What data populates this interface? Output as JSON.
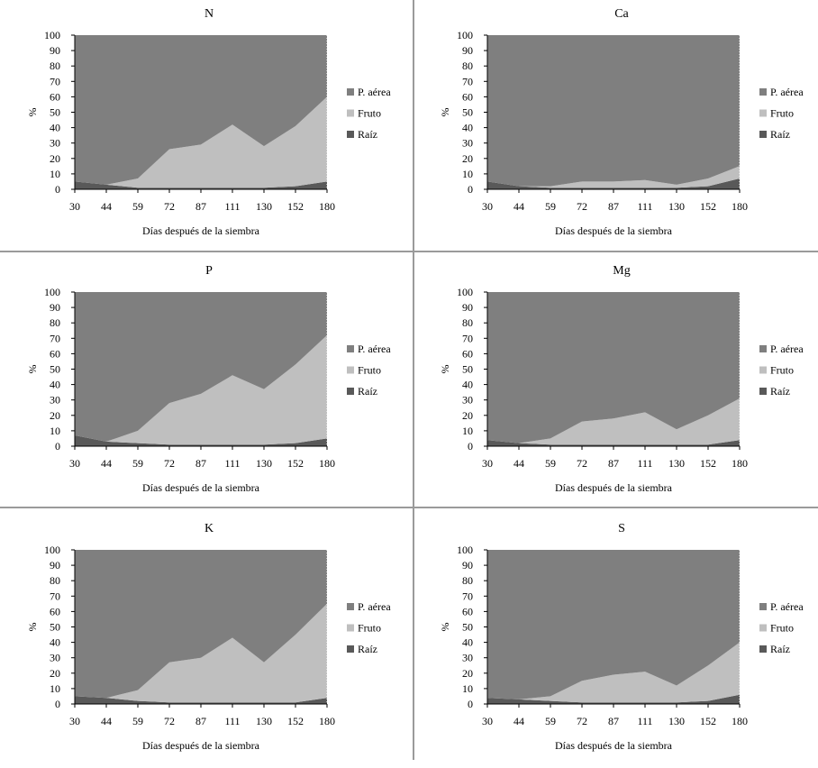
{
  "colors": {
    "aerial": "#7f7f7f",
    "fruit": "#bfbfbf",
    "root": "#595959"
  },
  "chart_data": [
    {
      "type": "area",
      "stacked": true,
      "title": "N",
      "xlabel": "Días después de la siembra",
      "ylabel": "%",
      "ylim": [
        0,
        100
      ],
      "yticks": [
        0,
        10,
        20,
        30,
        40,
        50,
        60,
        70,
        80,
        90,
        100
      ],
      "categories": [
        "30",
        "44",
        "59",
        "72",
        "87",
        "111",
        "130",
        "152",
        "180"
      ],
      "legend": "right",
      "series": [
        {
          "name": "Raíz",
          "values": [
            5,
            3,
            1,
            1,
            1,
            1,
            1,
            2,
            5
          ]
        },
        {
          "name": "Fruto",
          "values": [
            0,
            0,
            6,
            25,
            28,
            41,
            27,
            39,
            55
          ]
        },
        {
          "name": "P. aérea",
          "values": [
            95,
            97,
            93,
            74,
            71,
            58,
            72,
            59,
            40
          ]
        }
      ]
    },
    {
      "type": "area",
      "stacked": true,
      "title": "Ca",
      "xlabel": "Días después de la siembra",
      "ylabel": "%",
      "ylim": [
        0,
        100
      ],
      "yticks": [
        0,
        10,
        20,
        30,
        40,
        50,
        60,
        70,
        80,
        90,
        100
      ],
      "categories": [
        "30",
        "44",
        "59",
        "72",
        "87",
        "111",
        "130",
        "152",
        "180"
      ],
      "legend": "right",
      "series": [
        {
          "name": "Raíz",
          "values": [
            5,
            2,
            1,
            1,
            1,
            1,
            1,
            2,
            7
          ]
        },
        {
          "name": "Fruto",
          "values": [
            0,
            0,
            1,
            4,
            4,
            5,
            2,
            5,
            8
          ]
        },
        {
          "name": "P. aérea",
          "values": [
            95,
            98,
            98,
            95,
            95,
            94,
            97,
            93,
            85
          ]
        }
      ]
    },
    {
      "type": "area",
      "stacked": true,
      "title": "P",
      "xlabel": "Días después de la siembra",
      "ylabel": "%",
      "ylim": [
        0,
        100
      ],
      "yticks": [
        0,
        10,
        20,
        30,
        40,
        50,
        60,
        70,
        80,
        90,
        100
      ],
      "categories": [
        "30",
        "44",
        "59",
        "72",
        "87",
        "111",
        "130",
        "152",
        "180"
      ],
      "legend": "right",
      "series": [
        {
          "name": "Raíz",
          "values": [
            7,
            3,
            2,
            1,
            1,
            1,
            1,
            2,
            5
          ]
        },
        {
          "name": "Fruto",
          "values": [
            0,
            0,
            8,
            27,
            33,
            45,
            36,
            51,
            67
          ]
        },
        {
          "name": "P. aérea",
          "values": [
            93,
            97,
            90,
            72,
            66,
            54,
            63,
            47,
            28
          ]
        }
      ]
    },
    {
      "type": "area",
      "stacked": true,
      "title": "Mg",
      "xlabel": "Días después de la siembra",
      "ylabel": "%",
      "ylim": [
        0,
        100
      ],
      "yticks": [
        0,
        10,
        20,
        30,
        40,
        50,
        60,
        70,
        80,
        90,
        100
      ],
      "categories": [
        "30",
        "44",
        "59",
        "72",
        "87",
        "111",
        "130",
        "152",
        "180"
      ],
      "legend": "right",
      "series": [
        {
          "name": "Raíz",
          "values": [
            4,
            2,
            1,
            1,
            1,
            1,
            1,
            1,
            4
          ]
        },
        {
          "name": "Fruto",
          "values": [
            0,
            0,
            4,
            15,
            17,
            21,
            10,
            19,
            27
          ]
        },
        {
          "name": "P. aérea",
          "values": [
            96,
            98,
            95,
            84,
            82,
            78,
            89,
            80,
            69
          ]
        }
      ]
    },
    {
      "type": "area",
      "stacked": true,
      "title": "K",
      "xlabel": "Días después de la siembra",
      "ylabel": "%",
      "ylim": [
        0,
        100
      ],
      "yticks": [
        0,
        10,
        20,
        30,
        40,
        50,
        60,
        70,
        80,
        90,
        100
      ],
      "categories": [
        "30",
        "44",
        "59",
        "72",
        "87",
        "111",
        "130",
        "152",
        "180"
      ],
      "legend": "right",
      "series": [
        {
          "name": "Raíz",
          "values": [
            5,
            4,
            2,
            1,
            1,
            1,
            1,
            1,
            4
          ]
        },
        {
          "name": "Fruto",
          "values": [
            0,
            0,
            7,
            26,
            29,
            42,
            26,
            44,
            61
          ]
        },
        {
          "name": "P. aérea",
          "values": [
            95,
            96,
            91,
            73,
            70,
            57,
            73,
            55,
            35
          ]
        }
      ]
    },
    {
      "type": "area",
      "stacked": true,
      "title": "S",
      "xlabel": "Días después de la siembra",
      "ylabel": "%",
      "ylim": [
        0,
        100
      ],
      "yticks": [
        0,
        10,
        20,
        30,
        40,
        50,
        60,
        70,
        80,
        90,
        100
      ],
      "categories": [
        "30",
        "44",
        "59",
        "72",
        "87",
        "111",
        "130",
        "152",
        "180"
      ],
      "legend": "right",
      "series": [
        {
          "name": "Raíz",
          "values": [
            4,
            3,
            2,
            1,
            1,
            1,
            1,
            2,
            6
          ]
        },
        {
          "name": "Fruto",
          "values": [
            0,
            0,
            3,
            14,
            18,
            20,
            11,
            23,
            34
          ]
        },
        {
          "name": "P. aérea",
          "values": [
            96,
            97,
            95,
            85,
            81,
            79,
            88,
            75,
            60
          ]
        }
      ]
    }
  ]
}
